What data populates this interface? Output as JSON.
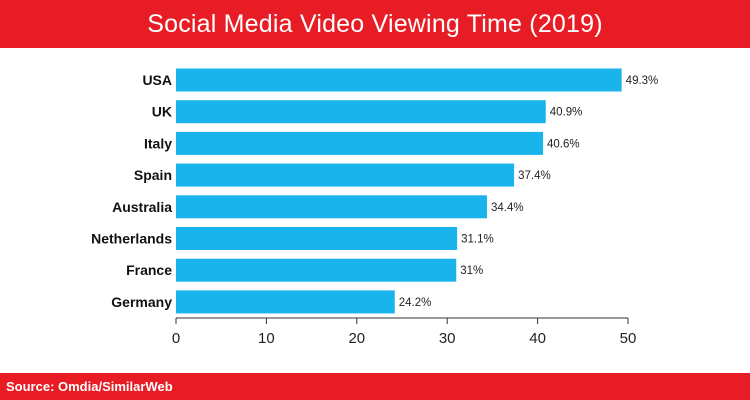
{
  "header": {
    "title": "Social Media Video Viewing Time (2019)"
  },
  "footer": {
    "source": "Source: Omdia/SimilarWeb"
  },
  "colors": {
    "brand_red": "#e81c24",
    "bar_blue": "#19b4ec",
    "axis": "#333333"
  },
  "chart_data": {
    "type": "bar",
    "orientation": "horizontal",
    "title": "Social Media Video Viewing Time (2019)",
    "categories": [
      "USA",
      "UK",
      "Italy",
      "Spain",
      "Australia",
      "Netherlands",
      "France",
      "Germany"
    ],
    "values": [
      49.3,
      40.9,
      40.6,
      37.4,
      34.4,
      31.1,
      31,
      24.2
    ],
    "value_labels": [
      "49.3%",
      "40.9%",
      "40.6%",
      "37.4%",
      "34.4%",
      "31.1%",
      "31%",
      "24.2%"
    ],
    "xlim": [
      0,
      50
    ],
    "xticks": [
      0,
      10,
      20,
      30,
      40,
      50
    ],
    "xlabel": "",
    "ylabel": "",
    "grid": false,
    "legend": "none"
  }
}
